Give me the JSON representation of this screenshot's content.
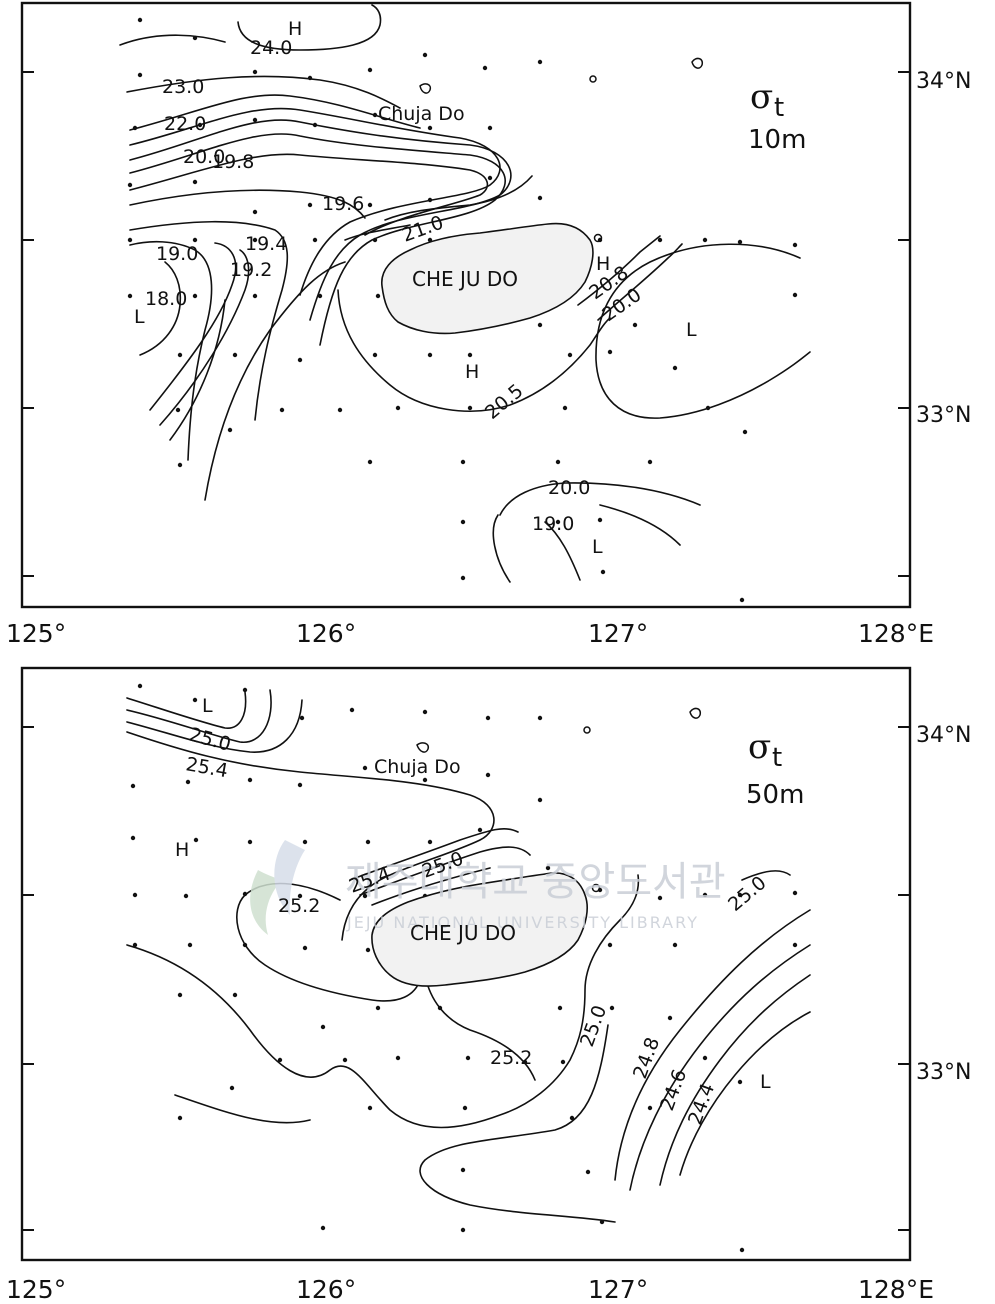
{
  "map_data": {
    "variable_symbol": "σ",
    "variable_subscript": "t",
    "island_label": "CHE JU DO",
    "place_label": "Chuja Do",
    "lon_axis": [
      "125°",
      "126°",
      "127°",
      "128°E"
    ],
    "lat_axis": [
      "34°N",
      "33°N"
    ],
    "panels": [
      {
        "depth": "10m",
        "contour_labels": [
          "24.0",
          "23.0",
          "22.0",
          "20.0",
          "19.8",
          "19.6",
          "21.0",
          "19.4",
          "19.0",
          "19.2",
          "18.0",
          "20.8",
          "20.0",
          "20.5",
          "20.0",
          "19.0"
        ],
        "markers": [
          "H",
          "L",
          "H",
          "H",
          "L",
          "L"
        ]
      },
      {
        "depth": "50m",
        "contour_labels": [
          "25.0",
          "25.4",
          "25.0",
          "25.4",
          "25.2",
          "25.0",
          "25.0",
          "25.2",
          "24.8",
          "24.6",
          "24.4"
        ],
        "markers": [
          "L",
          "H",
          "L"
        ]
      }
    ],
    "watermark": {
      "korean": "제주대학교 중앙도서관",
      "english": "JEJU NATIONAL UNIVERSITY LIBRARY"
    },
    "colors": {
      "ink": "#111111",
      "watermark": "#c9ced6",
      "land": "#f2f2f2"
    }
  }
}
